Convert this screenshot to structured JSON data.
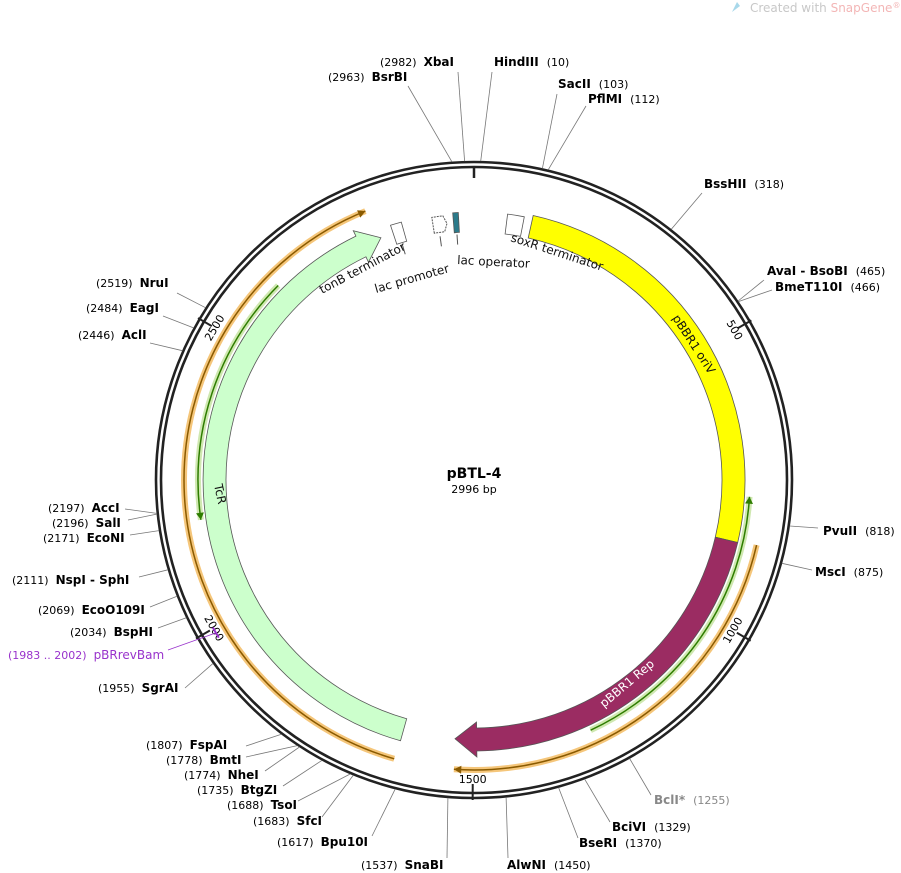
{
  "watermark": {
    "prefix": "Created with ",
    "brand": "SnapGene",
    "suffix": "®"
  },
  "plasmid": {
    "name": "pBTL-4",
    "size_label": "2996 bp",
    "length": 2996
  },
  "ticks": [
    {
      "bp": 500,
      "label": "500"
    },
    {
      "bp": 1000,
      "label": "1000"
    },
    {
      "bp": 1500,
      "label": "1500"
    },
    {
      "bp": 2000,
      "label": "2000"
    },
    {
      "bp": 2500,
      "label": "2500"
    }
  ],
  "colors": {
    "backbone": "#222222",
    "orange": "#f5c67a",
    "orange_line": "#8a5a00",
    "green_line": "#2e7d00",
    "primer": "#9933cc",
    "gray_enzyme": "#888888"
  },
  "features": [
    {
      "name": "pBBR1 oriV",
      "start": 105,
      "end": 860,
      "color": "#ffff00",
      "type": "band",
      "direction": "none"
    },
    {
      "name": "pBBR1 Rep",
      "start": 860,
      "end": 1533,
      "color": "#9b2c62",
      "type": "arrow",
      "direction": "cw"
    },
    {
      "name": "TcR",
      "start": 1629,
      "end": 2821,
      "color": "#ccffcc",
      "type": "arrow",
      "direction": "cw"
    },
    {
      "name": "tonB terminator",
      "start": 2845,
      "end": 2865,
      "color": "#ffffff",
      "type": "box"
    },
    {
      "name": "lac promoter",
      "start": 2920,
      "end": 2940,
      "color": "#ffffff",
      "type": "promoter"
    },
    {
      "name": "lac operator",
      "start": 2958,
      "end": 2968,
      "color": "#2b7a8a",
      "type": "box"
    },
    {
      "name": "soxR terminator",
      "start": 60,
      "end": 90,
      "color": "#ffffff",
      "type": "box"
    }
  ],
  "orfs": [
    {
      "start": 857,
      "end": 1531,
      "direction": "cw",
      "kind": "orange"
    },
    {
      "start": 1631,
      "end": 2813,
      "direction": "cw",
      "kind": "orange"
    },
    {
      "start": 778,
      "end": 1290,
      "direction": "ccw",
      "kind": "green"
    },
    {
      "start": 2178,
      "end": 2620,
      "direction": "ccw",
      "kind": "green"
    }
  ],
  "enzymes": [
    {
      "name": "XbaI",
      "pos": "(2982)",
      "bp": 2982
    },
    {
      "name": "BsrBI",
      "pos": "(2963)",
      "bp": 2963
    },
    {
      "name": "HindIII",
      "pos": "(10)",
      "bp": 10
    },
    {
      "name": "SacII",
      "pos": "(103)",
      "bp": 103
    },
    {
      "name": "PflMI",
      "pos": "(112)",
      "bp": 112
    },
    {
      "name": "BssHII",
      "pos": "(318)",
      "bp": 318
    },
    {
      "name": "AvaI  - BsoBI",
      "pos": "(465)",
      "bp": 465
    },
    {
      "name": "BmeT110I",
      "pos": "(466)",
      "bp": 466
    },
    {
      "name": "PvuII",
      "pos": "(818)",
      "bp": 818
    },
    {
      "name": "MscI",
      "pos": "(875)",
      "bp": 875
    },
    {
      "name": "BclI*",
      "pos": "(1255)",
      "bp": 1255,
      "color": "#888888"
    },
    {
      "name": "BciVI",
      "pos": "(1329)",
      "bp": 1329
    },
    {
      "name": "BseRI",
      "pos": "(1370)",
      "bp": 1370
    },
    {
      "name": "AlwNI",
      "pos": "(1450)",
      "bp": 1450
    },
    {
      "name": "SnaBI",
      "pos": "(1537)",
      "bp": 1537
    },
    {
      "name": "Bpu10I",
      "pos": "(1617)",
      "bp": 1617
    },
    {
      "name": "SfcI",
      "pos": "(1683)",
      "bp": 1683
    },
    {
      "name": "TsoI",
      "pos": "(1688)",
      "bp": 1688
    },
    {
      "name": "BtgZI",
      "pos": "(1735)",
      "bp": 1735
    },
    {
      "name": "NheI",
      "pos": "(1774)",
      "bp": 1774
    },
    {
      "name": "BmtI",
      "pos": "(1778)",
      "bp": 1778
    },
    {
      "name": "FspAI",
      "pos": "(1807)",
      "bp": 1807
    },
    {
      "name": "SgrAI",
      "pos": "(1955)",
      "bp": 1955
    },
    {
      "name": "pBRrevBam",
      "pos": "(1983 .. 2002)",
      "bp": 1992,
      "color": "#9933cc",
      "primer": true
    },
    {
      "name": "BspHI",
      "pos": "(2034)",
      "bp": 2034
    },
    {
      "name": "EcoO109I",
      "pos": "(2069)",
      "bp": 2069
    },
    {
      "name": "NspI  - SphI",
      "pos": "(2111)",
      "bp": 2111
    },
    {
      "name": "EcoNI",
      "pos": "(2171)",
      "bp": 2171
    },
    {
      "name": "SalI",
      "pos": "(2196)",
      "bp": 2196
    },
    {
      "name": "AccI",
      "pos": "(2197)",
      "bp": 2197
    },
    {
      "name": "AclI",
      "pos": "(2446)",
      "bp": 2446
    },
    {
      "name": "EagI",
      "pos": "(2484)",
      "bp": 2484
    },
    {
      "name": "NruI",
      "pos": "(2519)",
      "bp": 2519
    }
  ]
}
